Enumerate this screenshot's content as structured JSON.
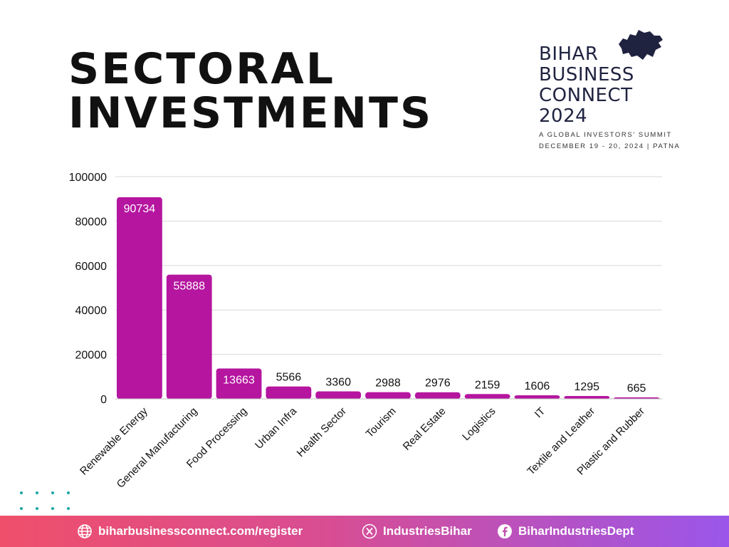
{
  "title": {
    "line1": "SECTORAL",
    "line2": "INVESTMENTS"
  },
  "logo": {
    "line1": "BIHAR",
    "line2": "BUSINESS",
    "line3": "CONNECT",
    "line4": "2024",
    "tagline": "A GLOBAL INVESTORS' SUMMIT",
    "dates": "DECEMBER 19 - 20, 2024 | PATNA",
    "icon": "bihar-map-icon"
  },
  "footer": {
    "website": "biharbusinessconnect.com/register",
    "twitter": "IndustriesBihar",
    "facebook": "BiharIndustriesDept"
  },
  "colors": {
    "bar": "#b5159f",
    "title": "#111111",
    "brand": "#1f2340",
    "grid": "#d9d9d9",
    "dots": "#19a7a0"
  },
  "chart_data": {
    "type": "bar",
    "title": "",
    "xlabel": "",
    "ylabel": "",
    "ylim": [
      0,
      100000
    ],
    "yticks": [
      0,
      20000,
      40000,
      60000,
      80000,
      100000
    ],
    "grid": true,
    "categories": [
      "Renewable Energy",
      "General Manufacturing",
      "Food Processing",
      "Urban Infra",
      "Health Sector",
      "Tourism",
      "Real Estate",
      "Logistics",
      "IT",
      "Textile and Leather",
      "Plastic and Rubber"
    ],
    "values": [
      90734,
      55888,
      13663,
      5566,
      3360,
      2988,
      2976,
      2159,
      1606,
      1295,
      665
    ]
  }
}
